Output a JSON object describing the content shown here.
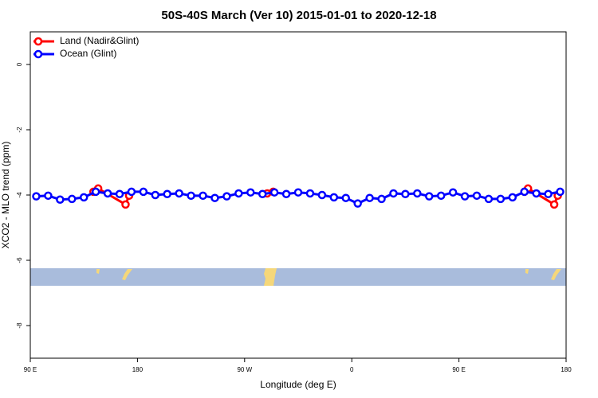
{
  "chart_data": {
    "type": "line",
    "title": "50S-40S March (Ver 10)   2015-01-01 to 2020-12-18",
    "x_label": "Longitude (deg E)",
    "y_label": "XCO2 - MLO trend (ppm)",
    "xlim": [
      90,
      540
    ],
    "ylim": [
      -9,
      1
    ],
    "xticks": [
      {
        "value": 90,
        "label": "90 E"
      },
      180,
      {
        "value": 270,
        "label": "90 W"
      },
      {
        "value": 360,
        "label": "0"
      },
      {
        "value": 450,
        "label": "90 E"
      },
      {
        "value": 540,
        "label": "180"
      }
    ],
    "yticks": [
      0,
      -2,
      -4,
      -6,
      -8
    ],
    "legend": "top-left",
    "series": [
      {
        "name": "Land (Nadir&Glint)",
        "color": "#ff0000",
        "x": [
          143,
          147,
          170,
          173,
          250,
          289,
          294,
          330,
          505,
          508,
          530,
          533
        ],
        "values": [
          -3.9,
          -3.8,
          -4.29,
          -4.02,
          null,
          -3.95,
          -3.9,
          null,
          -3.9,
          -3.8,
          -4.29,
          -4.02
        ]
      },
      {
        "name": "Ocean (Glint)",
        "color": "#0000ff",
        "x": [
          95,
          105,
          115,
          125,
          135,
          145,
          155,
          165,
          175,
          185,
          195,
          205,
          215,
          225,
          235,
          245,
          255,
          265,
          275,
          285,
          295,
          305,
          315,
          325,
          335,
          345,
          355,
          365,
          375,
          385,
          395,
          405,
          415,
          425,
          435,
          445,
          455,
          465,
          475,
          485,
          495,
          505,
          515,
          525,
          535
        ],
        "values": [
          -4.04,
          -4.02,
          -4.14,
          -4.12,
          -4.07,
          -3.9,
          -3.95,
          -3.97,
          -3.9,
          -3.9,
          -4.0,
          -3.97,
          -3.95,
          -4.02,
          -4.02,
          -4.09,
          -4.04,
          -3.95,
          -3.92,
          -3.97,
          -3.92,
          -3.97,
          -3.92,
          -3.95,
          -4.0,
          -4.07,
          -4.09,
          -4.26,
          -4.09,
          -4.12,
          -3.95,
          -3.97,
          -3.95,
          -4.04,
          -4.02,
          -3.92,
          -4.04,
          -4.02,
          -4.12,
          -4.12,
          -4.07,
          -3.9,
          -3.95,
          -3.97,
          -3.9
        ]
      }
    ]
  }
}
